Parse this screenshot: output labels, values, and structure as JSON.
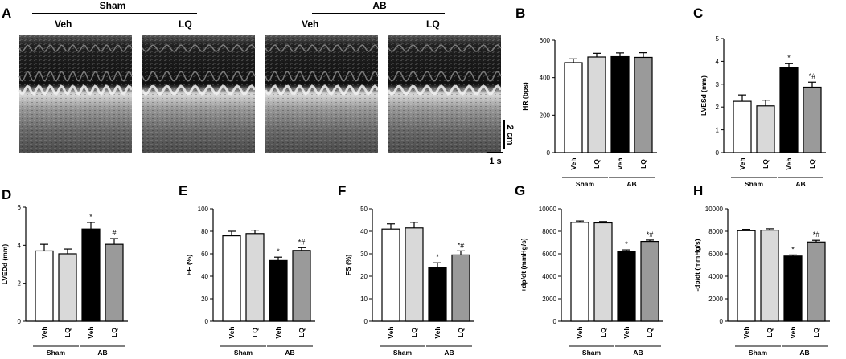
{
  "panel_a": {
    "letter": "A",
    "groups": [
      {
        "label": "Sham",
        "images": [
          "Veh",
          "LQ"
        ]
      },
      {
        "label": "AB",
        "images": [
          "Veh",
          "LQ"
        ]
      }
    ],
    "scale_vertical": "2 cm",
    "scale_horizontal": "1 s"
  },
  "chart_data": [
    {
      "letter": "B",
      "type": "bar",
      "categories": [
        "Veh",
        "LQ",
        "Veh",
        "LQ"
      ],
      "group_labels": [
        "Sham",
        "AB"
      ],
      "ylabel": "HR (bps)",
      "ylim": [
        0,
        600
      ],
      "ticks": [
        0,
        200,
        400,
        600
      ],
      "values": [
        480,
        510,
        512,
        508
      ],
      "errors": [
        20,
        20,
        20,
        25
      ],
      "annotations": [
        "",
        "",
        "",
        ""
      ],
      "colors": [
        "#ffffff",
        "#d9d9d9",
        "#000000",
        "#9a9a9a"
      ]
    },
    {
      "letter": "C",
      "type": "bar",
      "categories": [
        "Veh",
        "LQ",
        "Veh",
        "LQ"
      ],
      "group_labels": [
        "Sham",
        "AB"
      ],
      "ylabel": "LVESd (mm)",
      "ylim": [
        0,
        5
      ],
      "ticks": [
        0,
        1,
        2,
        3,
        4,
        5
      ],
      "values": [
        2.25,
        2.05,
        3.72,
        2.87
      ],
      "errors": [
        0.28,
        0.25,
        0.18,
        0.22
      ],
      "annotations": [
        "",
        "",
        "*",
        "*#"
      ],
      "colors": [
        "#ffffff",
        "#d9d9d9",
        "#000000",
        "#9a9a9a"
      ]
    },
    {
      "letter": "D",
      "type": "bar",
      "categories": [
        "Veh",
        "LQ",
        "Veh",
        "LQ"
      ],
      "group_labels": [
        "Sham",
        "AB"
      ],
      "ylabel": "LVEDd (mm)",
      "ylim": [
        0,
        6
      ],
      "ticks": [
        0,
        2,
        4,
        6
      ],
      "values": [
        3.7,
        3.55,
        4.85,
        4.05
      ],
      "errors": [
        0.35,
        0.25,
        0.35,
        0.3
      ],
      "annotations": [
        "",
        "",
        "*",
        "#"
      ],
      "colors": [
        "#ffffff",
        "#d9d9d9",
        "#000000",
        "#9a9a9a"
      ]
    },
    {
      "letter": "E",
      "type": "bar",
      "categories": [
        "Veh",
        "LQ",
        "Veh",
        "LQ"
      ],
      "group_labels": [
        "Sham",
        "AB"
      ],
      "ylabel": "EF (%)",
      "ylim": [
        0,
        100
      ],
      "ticks": [
        0,
        20,
        40,
        60,
        80,
        100
      ],
      "values": [
        76,
        78,
        54,
        63
      ],
      "errors": [
        4,
        3,
        3,
        2.5
      ],
      "annotations": [
        "",
        "",
        "*",
        "*#"
      ],
      "colors": [
        "#ffffff",
        "#d9d9d9",
        "#000000",
        "#9a9a9a"
      ]
    },
    {
      "letter": "F",
      "type": "bar",
      "categories": [
        "Veh",
        "LQ",
        "Veh",
        "LQ"
      ],
      "group_labels": [
        "Sham",
        "AB"
      ],
      "ylabel": "FS (%)",
      "ylim": [
        0,
        50
      ],
      "ticks": [
        0,
        10,
        20,
        30,
        40,
        50
      ],
      "values": [
        41,
        41.5,
        24,
        29.5
      ],
      "errors": [
        2.3,
        2.5,
        2,
        1.8
      ],
      "annotations": [
        "",
        "",
        "*",
        "*#"
      ],
      "colors": [
        "#ffffff",
        "#d9d9d9",
        "#000000",
        "#9a9a9a"
      ]
    },
    {
      "letter": "G",
      "type": "bar",
      "categories": [
        "Veh",
        "LQ",
        "Veh",
        "LQ"
      ],
      "group_labels": [
        "Sham",
        "AB"
      ],
      "ylabel": "+dp/dt (mmHg/s)",
      "ylim": [
        0,
        10000
      ],
      "ticks": [
        0,
        2000,
        4000,
        6000,
        8000,
        10000
      ],
      "values": [
        8800,
        8750,
        6200,
        7100
      ],
      "errors": [
        120,
        120,
        150,
        120
      ],
      "annotations": [
        "",
        "",
        "*",
        "*#"
      ],
      "colors": [
        "#ffffff",
        "#d9d9d9",
        "#000000",
        "#9a9a9a"
      ]
    },
    {
      "letter": "H",
      "type": "bar",
      "categories": [
        "Veh",
        "LQ",
        "Veh",
        "LQ"
      ],
      "group_labels": [
        "Sham",
        "AB"
      ],
      "ylabel": "-dp/dt (mmHg/s)",
      "ylim": [
        0,
        10000
      ],
      "ticks": [
        0,
        2000,
        4000,
        6000,
        8000,
        10000
      ],
      "values": [
        8050,
        8100,
        5800,
        7050
      ],
      "errors": [
        120,
        120,
        100,
        150
      ],
      "annotations": [
        "",
        "",
        "*",
        "*#"
      ],
      "colors": [
        "#ffffff",
        "#d9d9d9",
        "#000000",
        "#9a9a9a"
      ]
    }
  ]
}
